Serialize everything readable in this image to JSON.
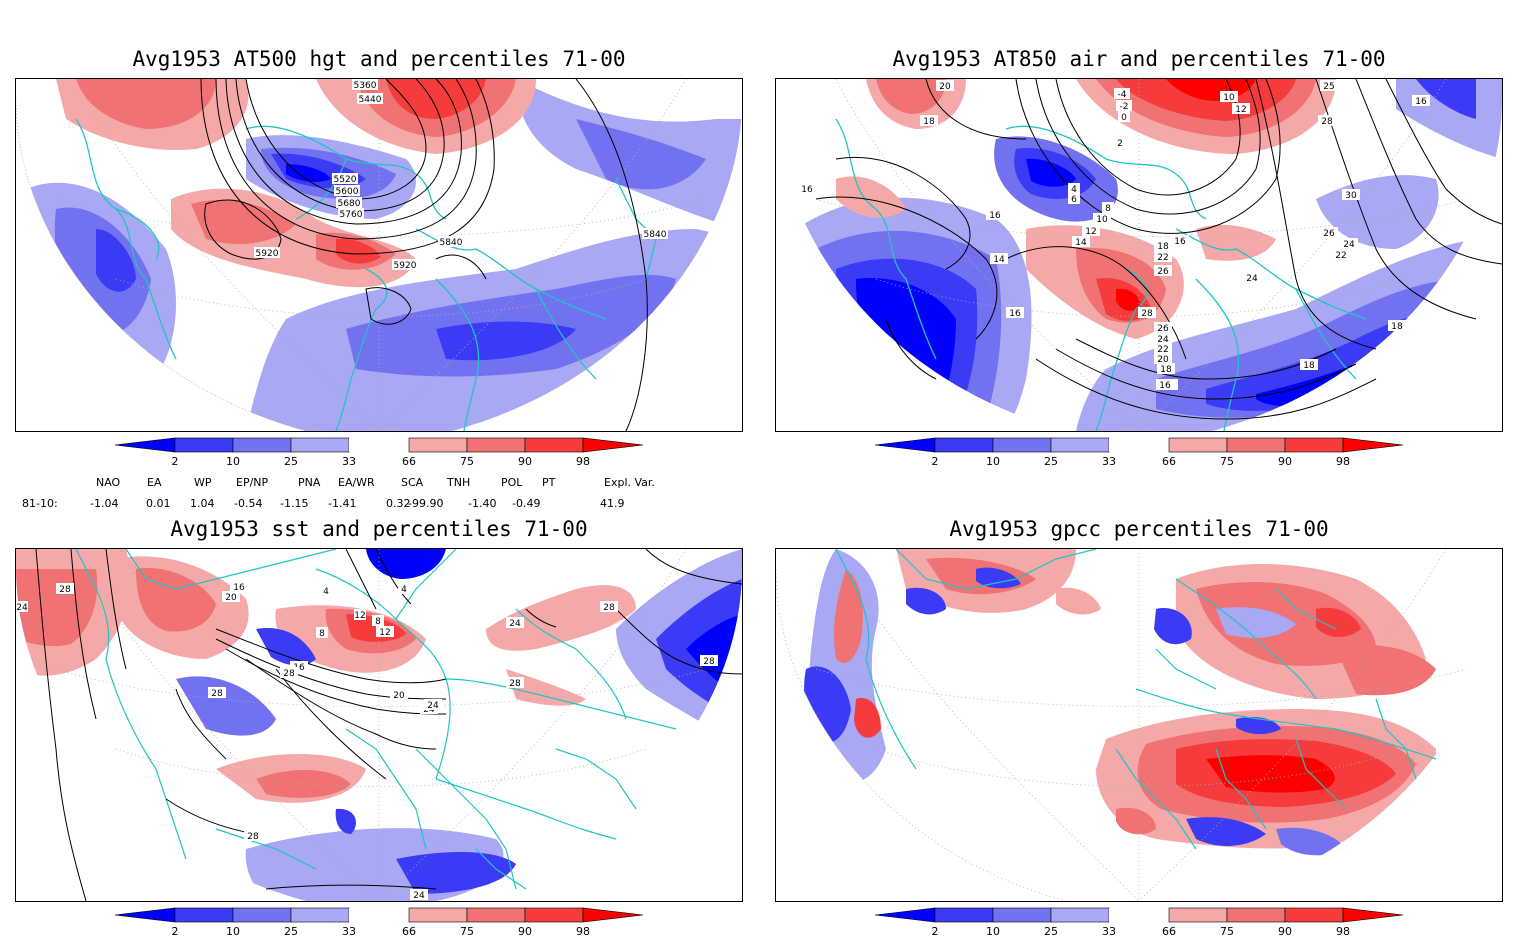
{
  "panels": [
    {
      "id": "tl",
      "title": "Avg1953 AT500 hgt and percentiles 71-00",
      "contour_labels": [
        "5360",
        "5440",
        "5520",
        "5600",
        "5680",
        "5760",
        "5920",
        "5920",
        "5840",
        "5840"
      ]
    },
    {
      "id": "tr",
      "title": "Avg1953 AT850 air and percentiles 71-00",
      "contour_labels": [
        "20",
        "18",
        "16",
        "16",
        "-4",
        "-2",
        "0",
        "2",
        "4",
        "6",
        "8",
        "10",
        "12",
        "14",
        "16",
        "18",
        "22",
        "24",
        "26",
        "28",
        "26",
        "24",
        "22",
        "20",
        "18",
        "16",
        "14",
        "16",
        "10",
        "12",
        "25",
        "28",
        "30",
        "26",
        "24",
        "22",
        "16",
        "18",
        "18",
        "16"
      ]
    },
    {
      "id": "bl",
      "title": "Avg1953 sst and percentiles 71-00",
      "contour_labels": [
        "24",
        "28",
        "16",
        "20",
        "4",
        "8",
        "12",
        "4",
        "8",
        "12",
        "16",
        "20",
        "24",
        "28",
        "28",
        "28",
        "24",
        "24",
        "28",
        "28",
        "24",
        "28"
      ]
    },
    {
      "id": "br",
      "title": "Avg1953 gpcc percentiles 71-00",
      "contour_labels": []
    }
  ],
  "colorbar": {
    "labels": [
      "2",
      "10",
      "25",
      "33",
      "66",
      "75",
      "90",
      "98"
    ],
    "colors": [
      "#0000ff",
      "#3b3bf5",
      "#7272f0",
      "#a8a8f5",
      "#ffffff",
      "#f5a8a8",
      "#f07272",
      "#f53b3b",
      "#ff0000"
    ]
  },
  "index_table": {
    "headers": [
      "NAO",
      "EA",
      "WP",
      "EP/NP",
      "PNA",
      "EA/WR",
      "SCA",
      "TNH",
      "POL",
      "PT",
      "Expl. Var."
    ],
    "row_label": "81-10:",
    "values": [
      "-1.04",
      "0.01",
      "1.04",
      "-0.54",
      "-1.15",
      "-1.41",
      "0.32",
      "-99.90",
      "-1.40",
      "-0.49",
      "41.9"
    ]
  },
  "colors": {
    "coast": "#20c4c4",
    "contour": "#000000",
    "grid": "#b0b0b0"
  }
}
